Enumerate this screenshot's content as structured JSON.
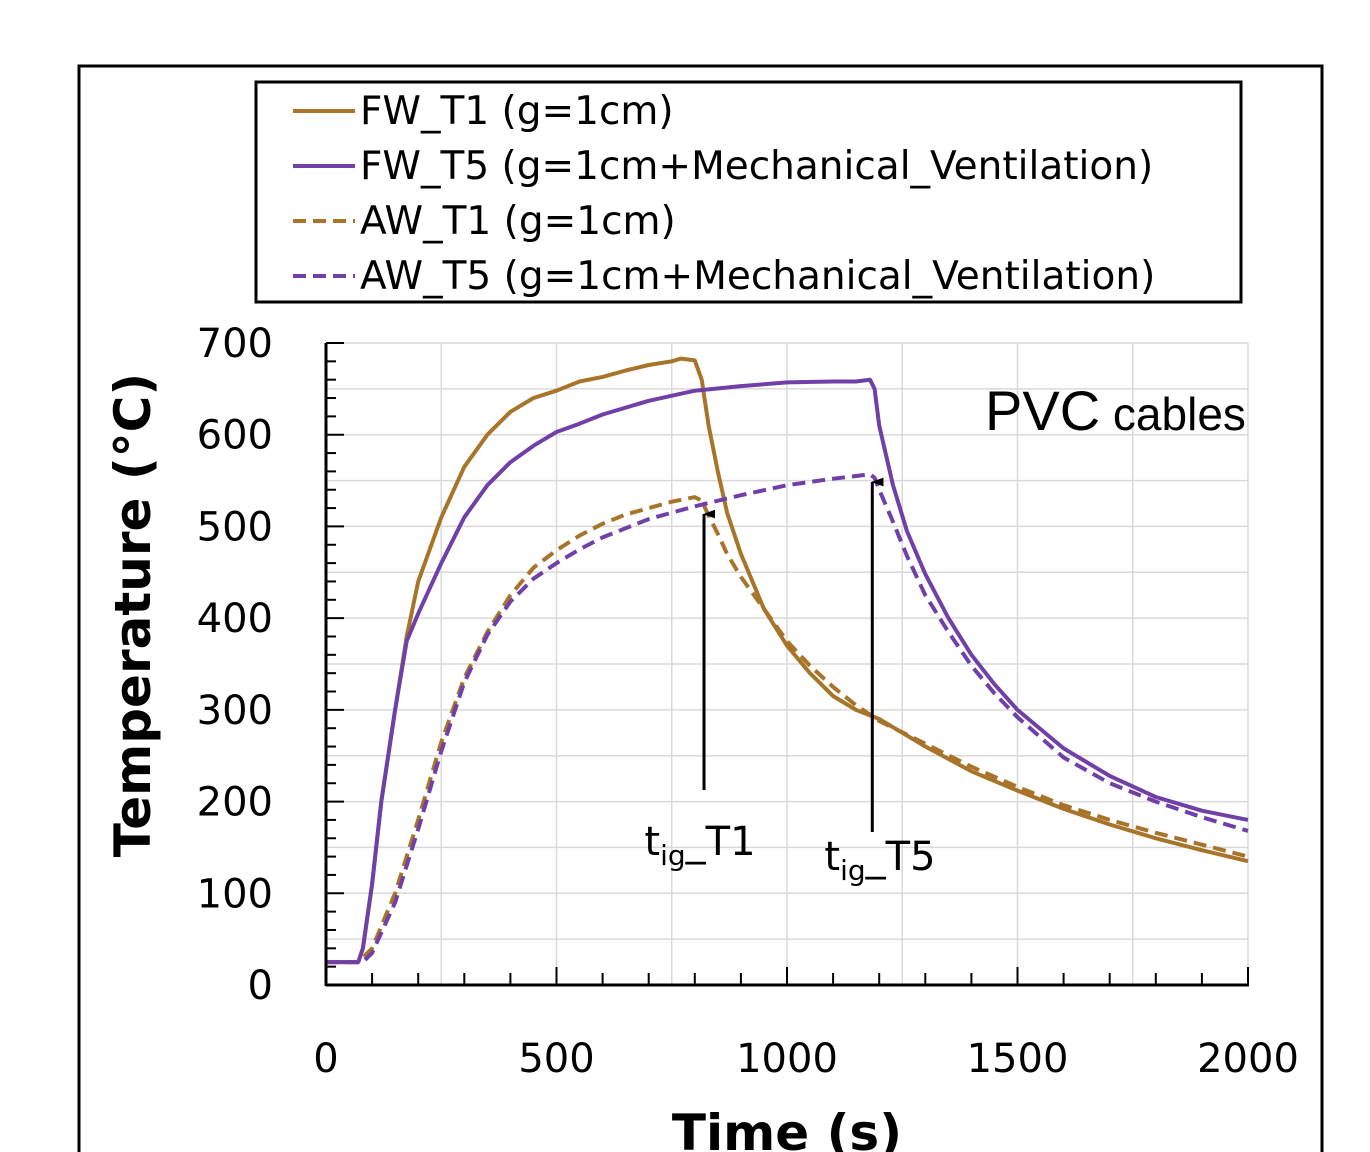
{
  "chart_data": {
    "type": "line",
    "title": "",
    "xlabel": "Time (s)",
    "ylabel": "Temperature (°C)",
    "xlim": [
      0,
      2000
    ],
    "ylim": [
      0,
      700
    ],
    "x_ticks": [
      0,
      500,
      1000,
      1500,
      2000
    ],
    "y_ticks": [
      0,
      100,
      200,
      300,
      400,
      500,
      600,
      700
    ],
    "grid": true,
    "legend_position": "top",
    "colors": {
      "T1": "#a8742a",
      "T5": "#7040a8"
    },
    "annotation_main": "PVC",
    "annotation_sub": "cables",
    "arrows": [
      {
        "label_main": "t",
        "label_sub": "ig",
        "label_rest": "_T1",
        "x": 820,
        "y": 520
      },
      {
        "label_main": "t",
        "label_sub": "ig",
        "label_rest": "_T5",
        "x": 1185,
        "y": 555
      }
    ],
    "series": [
      {
        "name": "FW_T1 (g=1cm)",
        "color": "#a8742a",
        "dash": false,
        "x": [
          0,
          70,
          80,
          100,
          120,
          150,
          175,
          200,
          250,
          300,
          350,
          400,
          450,
          500,
          550,
          600,
          650,
          700,
          750,
          770,
          800,
          815,
          830,
          850,
          870,
          900,
          950,
          1000,
          1050,
          1100,
          1150,
          1200,
          1300,
          1400,
          1500,
          1600,
          1700,
          1800,
          1900,
          2000
        ],
        "y": [
          25,
          25,
          40,
          110,
          200,
          300,
          380,
          440,
          510,
          565,
          600,
          625,
          640,
          648,
          658,
          663,
          670,
          676,
          680,
          683,
          681,
          660,
          610,
          560,
          515,
          470,
          410,
          370,
          340,
          315,
          300,
          290,
          260,
          233,
          212,
          192,
          175,
          160,
          147,
          135
        ]
      },
      {
        "name": "FW_T5 (g=1cm+Mechanical_Ventilation)",
        "color": "#7040a8",
        "dash": false,
        "x": [
          0,
          70,
          80,
          100,
          120,
          150,
          175,
          200,
          250,
          300,
          350,
          400,
          450,
          500,
          550,
          600,
          700,
          800,
          900,
          1000,
          1100,
          1150,
          1180,
          1190,
          1200,
          1230,
          1260,
          1300,
          1350,
          1400,
          1450,
          1500,
          1600,
          1700,
          1800,
          1900,
          2000
        ],
        "y": [
          25,
          25,
          40,
          110,
          200,
          300,
          375,
          405,
          460,
          510,
          545,
          570,
          588,
          603,
          612,
          622,
          637,
          648,
          653,
          657,
          658,
          658,
          660,
          650,
          610,
          545,
          495,
          448,
          400,
          360,
          328,
          300,
          258,
          228,
          205,
          190,
          180
        ]
      },
      {
        "name": "AW_T1 (g=1cm)",
        "color": "#a8742a",
        "dash": true,
        "x": [
          0,
          70,
          100,
          150,
          200,
          250,
          300,
          350,
          400,
          450,
          500,
          550,
          600,
          650,
          700,
          750,
          800,
          815,
          830,
          850,
          870,
          900,
          950,
          1000,
          1050,
          1100,
          1150,
          1200,
          1300,
          1400,
          1500,
          1600,
          1700,
          1800,
          1900,
          2000
        ],
        "y": [
          25,
          25,
          40,
          100,
          180,
          265,
          335,
          385,
          425,
          455,
          474,
          490,
          503,
          513,
          520,
          527,
          532,
          528,
          512,
          492,
          470,
          445,
          410,
          375,
          348,
          325,
          305,
          288,
          263,
          238,
          216,
          196,
          180,
          166,
          153,
          140
        ]
      },
      {
        "name": "AW_T5 (g=1cm+Mechanical_Ventilation)",
        "color": "#7040a8",
        "dash": true,
        "x": [
          0,
          80,
          100,
          150,
          200,
          250,
          300,
          350,
          400,
          450,
          500,
          550,
          600,
          700,
          800,
          900,
          1000,
          1100,
          1150,
          1180,
          1190,
          1200,
          1230,
          1260,
          1300,
          1350,
          1400,
          1450,
          1500,
          1600,
          1700,
          1800,
          1900,
          2000
        ],
        "y": [
          25,
          25,
          35,
          90,
          170,
          255,
          330,
          382,
          418,
          443,
          460,
          475,
          488,
          508,
          522,
          534,
          545,
          552,
          555,
          557,
          553,
          540,
          505,
          468,
          425,
          385,
          348,
          318,
          292,
          248,
          220,
          200,
          183,
          168
        ]
      }
    ]
  }
}
